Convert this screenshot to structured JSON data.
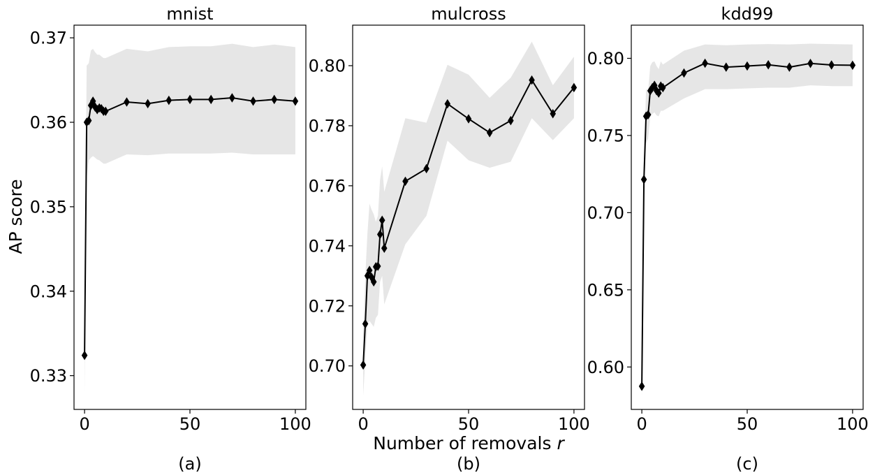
{
  "figure": {
    "ylabel": "AP score",
    "xlabel": "Number of removals r",
    "xlabel_main": "Number of removals ",
    "xlabel_var": "r"
  },
  "chart_data": [
    {
      "type": "line",
      "title": "mnist",
      "caption": "(a)",
      "ylabel": "AP score",
      "xlim": [
        -5,
        105
      ],
      "ylim": [
        0.326,
        0.3715
      ],
      "xticks": [
        0,
        50,
        100
      ],
      "yticks": [
        0.33,
        0.34,
        0.35,
        0.36,
        0.37
      ],
      "ytick_labels": [
        "0.33",
        "0.34",
        "0.35",
        "0.36",
        "0.37"
      ],
      "grid": false,
      "line_color": "#000000",
      "band_color": "#e6e6e6",
      "marker": "thin-diamond",
      "x": [
        0,
        1,
        2,
        3,
        4,
        5,
        6,
        7,
        8,
        9,
        10,
        20,
        30,
        40,
        50,
        60,
        70,
        80,
        90,
        100
      ],
      "y": [
        0.3324,
        0.36,
        0.3602,
        0.362,
        0.3625,
        0.3618,
        0.3615,
        0.3617,
        0.3616,
        0.3613,
        0.3613,
        0.3624,
        0.3622,
        0.3626,
        0.3627,
        0.3627,
        0.3629,
        0.3625,
        0.3627,
        0.3625
      ],
      "lower": [
        0.328,
        0.3535,
        0.3555,
        0.3558,
        0.356,
        0.3558,
        0.3556,
        0.3555,
        0.3553,
        0.3551,
        0.3551,
        0.3562,
        0.3561,
        0.3563,
        0.3563,
        0.3563,
        0.3564,
        0.3562,
        0.3562,
        0.3562
      ],
      "upper": [
        0.3366,
        0.3667,
        0.367,
        0.3685,
        0.3687,
        0.3683,
        0.368,
        0.368,
        0.3678,
        0.3676,
        0.3676,
        0.3687,
        0.3684,
        0.3689,
        0.369,
        0.369,
        0.3693,
        0.3689,
        0.3692,
        0.3689
      ]
    },
    {
      "type": "line",
      "title": "mulcross",
      "caption": "(b)",
      "xlim": [
        -5,
        105
      ],
      "ylim": [
        0.6855,
        0.8135
      ],
      "xticks": [
        0,
        50,
        100
      ],
      "yticks": [
        0.7,
        0.72,
        0.74,
        0.76,
        0.78,
        0.8
      ],
      "ytick_labels": [
        "0.70",
        "0.72",
        "0.74",
        "0.76",
        "0.78",
        "0.80"
      ],
      "grid": false,
      "line_color": "#000000",
      "band_color": "#e6e6e6",
      "marker": "thin-diamond",
      "x": [
        0,
        1,
        2,
        3,
        4,
        5,
        6,
        7,
        8,
        9,
        10,
        20,
        30,
        40,
        50,
        60,
        70,
        80,
        90,
        100
      ],
      "y": [
        0.7003,
        0.714,
        0.73,
        0.7318,
        0.7295,
        0.728,
        0.733,
        0.7332,
        0.7438,
        0.7485,
        0.7392,
        0.7615,
        0.7657,
        0.7873,
        0.7823,
        0.7777,
        0.7817,
        0.7952,
        0.784,
        0.7927
      ],
      "lower": [
        0.69,
        0.702,
        0.714,
        0.715,
        0.714,
        0.713,
        0.716,
        0.717,
        0.728,
        0.73,
        0.7205,
        0.7405,
        0.75,
        0.775,
        0.7685,
        0.766,
        0.768,
        0.7825,
        0.7752,
        0.7825
      ],
      "upper": [
        0.7105,
        0.73,
        0.744,
        0.754,
        0.752,
        0.7505,
        0.748,
        0.75,
        0.762,
        0.7665,
        0.758,
        0.7825,
        0.781,
        0.8003,
        0.797,
        0.7893,
        0.796,
        0.808,
        0.7935,
        0.803
      ]
    },
    {
      "type": "line",
      "title": "kdd99",
      "caption": "(c)",
      "xlim": [
        -5,
        105
      ],
      "ylim": [
        0.5725,
        0.8215
      ],
      "xticks": [
        0,
        50,
        100
      ],
      "yticks": [
        0.6,
        0.65,
        0.7,
        0.75,
        0.8
      ],
      "ytick_labels": [
        "0.60",
        "0.65",
        "0.70",
        "0.75",
        "0.80"
      ],
      "grid": false,
      "line_color": "#000000",
      "band_color": "#e6e6e6",
      "marker": "thin-diamond",
      "x": [
        0,
        1,
        2,
        3,
        4,
        5,
        6,
        7,
        8,
        9,
        10,
        20,
        30,
        40,
        50,
        60,
        70,
        80,
        90,
        100
      ],
      "y": [
        0.5875,
        0.7215,
        0.7625,
        0.7635,
        0.779,
        0.781,
        0.7825,
        0.779,
        0.7775,
        0.782,
        0.781,
        0.7905,
        0.7968,
        0.7943,
        0.795,
        0.7958,
        0.7943,
        0.7967,
        0.7957,
        0.7955
      ],
      "lower": [
        0.579,
        0.71,
        0.745,
        0.748,
        0.762,
        0.764,
        0.765,
        0.763,
        0.7625,
        0.766,
        0.766,
        0.774,
        0.78,
        0.78,
        0.7805,
        0.781,
        0.781,
        0.7825,
        0.782,
        0.782
      ],
      "upper": [
        0.596,
        0.733,
        0.78,
        0.779,
        0.795,
        0.7975,
        0.798,
        0.795,
        0.793,
        0.798,
        0.796,
        0.805,
        0.809,
        0.8085,
        0.809,
        0.8092,
        0.809,
        0.8095,
        0.8092,
        0.809
      ]
    }
  ]
}
